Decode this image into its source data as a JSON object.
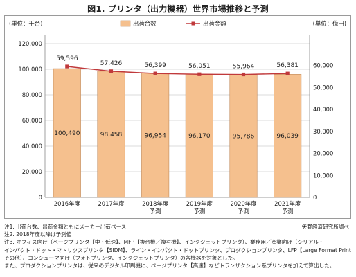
{
  "title": "図1. プリンタ（出力機器）世界市場推移と予測",
  "chart_data": {
    "type": "bar",
    "categories": [
      [
        "2016年度"
      ],
      [
        "2017年度"
      ],
      [
        "2018年度",
        "予測"
      ],
      [
        "2019年度",
        "予測"
      ],
      [
        "2020年度",
        "予測"
      ],
      [
        "2021年度",
        "予測"
      ]
    ],
    "series": [
      {
        "name": "出荷台数",
        "kind": "bar",
        "axis": "left",
        "color": "#f5c08e",
        "stroke": "#c08a5a",
        "values": [
          100490,
          98458,
          96954,
          96170,
          95786,
          96039
        ],
        "labels": [
          "100,490",
          "98,458",
          "96,954",
          "96,170",
          "95,786",
          "96,039"
        ]
      },
      {
        "name": "出荷金額",
        "kind": "line",
        "axis": "right",
        "color": "#c0393b",
        "values": [
          59596,
          57426,
          56399,
          56051,
          55964,
          56381
        ],
        "labels": [
          "59,596",
          "57,426",
          "56,399",
          "56,051",
          "55,964",
          "56,381"
        ]
      }
    ],
    "y_left": {
      "unit_label": "(単位：千台)",
      "range": [
        0,
        120000
      ],
      "ticks": [
        0,
        20000,
        40000,
        60000,
        80000,
        100000,
        120000
      ],
      "tick_labels": [
        "0",
        "20,000",
        "40,000",
        "60,000",
        "80,000",
        "100,000",
        "120,000"
      ]
    },
    "y_right": {
      "unit_label": "(単位：億円)",
      "range": [
        0,
        70000
      ],
      "ticks": [
        0,
        10000,
        20000,
        30000,
        40000,
        50000,
        60000,
        70000
      ],
      "tick_labels": [
        "0",
        "10,000",
        "20,000",
        "30,000",
        "40,000",
        "50,000",
        "60,000",
        ""
      ]
    },
    "grid": true,
    "legend": "top"
  },
  "source": "矢野経済研究所調べ",
  "notes": [
    "注1. 出荷台数、出荷金額ともにメーカー出荷ベース",
    "注2. 2018年度以降は予測値",
    "注3. オフィス向け（ページプリンタ【中・低速】、MFP【複合機／複写機】、インクジェットプリンタ）、業務用／産業向け（シリアル・",
    "インパクト・ドット・マトリクスプリンタ【SIDM】、ライン・インパクト・ドットプリンタ、プロダクションプリンタ、LFP【Large Format Printer】、",
    "その他）、コンシューマ向け（フォトプリンタ、インクジェットプリンタ）の各機器を対象とした。",
    "また、プロダクションプリンタは、従来のデジタル印刷機に、ページプリンタ【高速】などトランザクション系プリンタを加えて算出した。"
  ]
}
